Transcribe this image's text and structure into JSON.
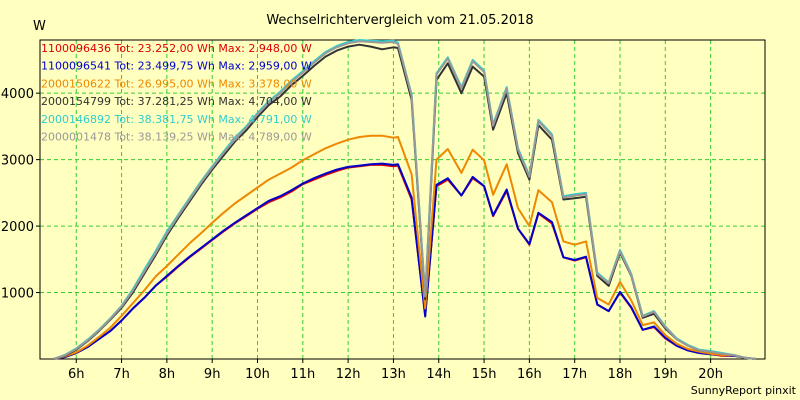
{
  "chart_data": {
    "type": "line",
    "title": "Wechselrichtervergleich vom 21.05.2018",
    "ylabel": "W",
    "xlabel": "",
    "footer": "SunnyReport pinxit",
    "ylim": [
      0,
      4800
    ],
    "xlim": [
      5.2,
      21.2
    ],
    "y_ticks": [
      1000,
      2000,
      3000,
      4000
    ],
    "x_ticks": [
      {
        "v": 6,
        "label": "6h"
      },
      {
        "v": 7,
        "label": "7h"
      },
      {
        "v": 8,
        "label": "8h"
      },
      {
        "v": 9,
        "label": "9h"
      },
      {
        "v": 10,
        "label": "10h"
      },
      {
        "v": 11,
        "label": "11h"
      },
      {
        "v": 12,
        "label": "12h"
      },
      {
        "v": 13,
        "label": "13h"
      },
      {
        "v": 14,
        "label": "14h"
      },
      {
        "v": 15,
        "label": "15h"
      },
      {
        "v": 16,
        "label": "16h"
      },
      {
        "v": 17,
        "label": "17h"
      },
      {
        "v": 18,
        "label": "18h"
      },
      {
        "v": 19,
        "label": "19h"
      },
      {
        "v": 20,
        "label": "20h"
      }
    ],
    "grid": true,
    "legend_position": "top-left",
    "background": "#ffffc0",
    "grid_color": "#33cc33",
    "x": [
      5.5,
      5.75,
      6,
      6.25,
      6.5,
      6.75,
      7,
      7.25,
      7.5,
      7.75,
      8,
      8.25,
      8.5,
      8.75,
      9,
      9.25,
      9.5,
      9.75,
      10,
      10.25,
      10.5,
      10.75,
      11,
      11.25,
      11.5,
      11.75,
      12,
      12.25,
      12.5,
      12.75,
      13,
      13.1,
      13.4,
      13.7,
      13.95,
      14.2,
      14.5,
      14.75,
      15,
      15.2,
      15.5,
      15.75,
      16,
      16.2,
      16.5,
      16.75,
      17,
      17.25,
      17.5,
      17.75,
      18,
      18.25,
      18.5,
      18.75,
      19,
      19.25,
      19.5,
      19.75,
      20,
      20.25,
      20.5,
      20.75,
      21
    ],
    "series": [
      {
        "name": "1100096436 Tot: 23.252,00 Wh Max: 2.948,00 W",
        "color": "#dd0000",
        "values": [
          0,
          30,
          90,
          180,
          300,
          420,
          580,
          760,
          920,
          1100,
          1240,
          1390,
          1530,
          1660,
          1790,
          1920,
          2040,
          2150,
          2260,
          2360,
          2430,
          2520,
          2630,
          2700,
          2770,
          2830,
          2880,
          2900,
          2920,
          2920,
          2900,
          2910,
          2400,
          660,
          2600,
          2700,
          2460,
          2720,
          2600,
          2150,
          2530,
          1960,
          1720,
          2190,
          2040,
          1530,
          1480,
          1530,
          820,
          720,
          1000,
          770,
          440,
          480,
          310,
          200,
          130,
          90,
          70,
          50,
          50,
          20,
          0
        ]
      },
      {
        "name": "1100096541 Tot: 23.499,75 Wh Max: 2.959,00 W",
        "color": "#0000cc",
        "values": [
          0,
          30,
          90,
          180,
          300,
          420,
          580,
          760,
          920,
          1100,
          1250,
          1400,
          1540,
          1670,
          1800,
          1930,
          2050,
          2160,
          2270,
          2380,
          2450,
          2540,
          2640,
          2720,
          2790,
          2850,
          2890,
          2910,
          2930,
          2940,
          2920,
          2930,
          2430,
          640,
          2620,
          2720,
          2460,
          2740,
          2600,
          2160,
          2550,
          1960,
          1730,
          2200,
          2060,
          1530,
          1490,
          1540,
          820,
          720,
          1010,
          780,
          440,
          490,
          320,
          200,
          130,
          90,
          70,
          60,
          50,
          20,
          0
        ]
      },
      {
        "name": "2000150622 Tot: 26.995,00 Wh Max: 3.378,00 W",
        "color": "#ee8800",
        "values": [
          0,
          40,
          100,
          200,
          330,
          470,
          650,
          840,
          1030,
          1240,
          1400,
          1570,
          1740,
          1890,
          2050,
          2200,
          2340,
          2460,
          2580,
          2700,
          2790,
          2880,
          2990,
          3080,
          3170,
          3240,
          3300,
          3340,
          3360,
          3360,
          3330,
          3340,
          2780,
          760,
          3000,
          3160,
          2800,
          3150,
          2990,
          2470,
          2930,
          2270,
          2000,
          2540,
          2360,
          1770,
          1720,
          1770,
          920,
          820,
          1160,
          880,
          510,
          550,
          360,
          230,
          150,
          110,
          80,
          60,
          60,
          20,
          0
        ]
      },
      {
        "name": "2000154799 Tot: 37.281,25 Wh Max: 4.704,00 W",
        "color": "#333333",
        "values": [
          0,
          50,
          140,
          270,
          420,
          590,
          770,
          1000,
          1280,
          1560,
          1860,
          2120,
          2370,
          2620,
          2850,
          3060,
          3270,
          3440,
          3640,
          3820,
          3950,
          4120,
          4260,
          4410,
          4550,
          4640,
          4700,
          4730,
          4700,
          4660,
          4690,
          4680,
          3900,
          900,
          4200,
          4450,
          4000,
          4400,
          4250,
          3450,
          4000,
          3100,
          2700,
          3520,
          3300,
          2400,
          2420,
          2440,
          1250,
          1100,
          1600,
          1250,
          620,
          680,
          460,
          300,
          200,
          130,
          110,
          80,
          60,
          20,
          0
        ]
      },
      {
        "name": "2000146892 Tot: 38.381,75 Wh Max: 4.791,00 W",
        "color": "#33cccc",
        "values": [
          0,
          60,
          160,
          290,
          440,
          610,
          800,
          1050,
          1340,
          1620,
          1920,
          2170,
          2420,
          2670,
          2900,
          3120,
          3330,
          3500,
          3700,
          3880,
          4020,
          4190,
          4330,
          4480,
          4620,
          4710,
          4770,
          4800,
          4790,
          4780,
          4790,
          4760,
          3980,
          950,
          4300,
          4540,
          4090,
          4500,
          4340,
          3530,
          4090,
          3170,
          2760,
          3600,
          3380,
          2450,
          2480,
          2500,
          1300,
          1150,
          1640,
          1280,
          650,
          720,
          490,
          310,
          210,
          140,
          120,
          90,
          60,
          20,
          0
        ]
      },
      {
        "name": "2000001478 Tot: 38.139,25 Wh Max: 4.789,00 W",
        "color": "#999999",
        "values": [
          0,
          55,
          150,
          280,
          430,
          600,
          790,
          1030,
          1310,
          1590,
          1890,
          2150,
          2400,
          2650,
          2880,
          3100,
          3300,
          3480,
          3680,
          3860,
          4000,
          4170,
          4310,
          4460,
          4600,
          4690,
          4750,
          4780,
          4770,
          4760,
          4770,
          4740,
          3960,
          940,
          4280,
          4520,
          4070,
          4480,
          4320,
          3510,
          4070,
          3150,
          2740,
          3580,
          3360,
          2430,
          2460,
          2480,
          1280,
          1140,
          1620,
          1260,
          640,
          710,
          480,
          300,
          200,
          130,
          110,
          80,
          60,
          20,
          0
        ]
      }
    ]
  }
}
